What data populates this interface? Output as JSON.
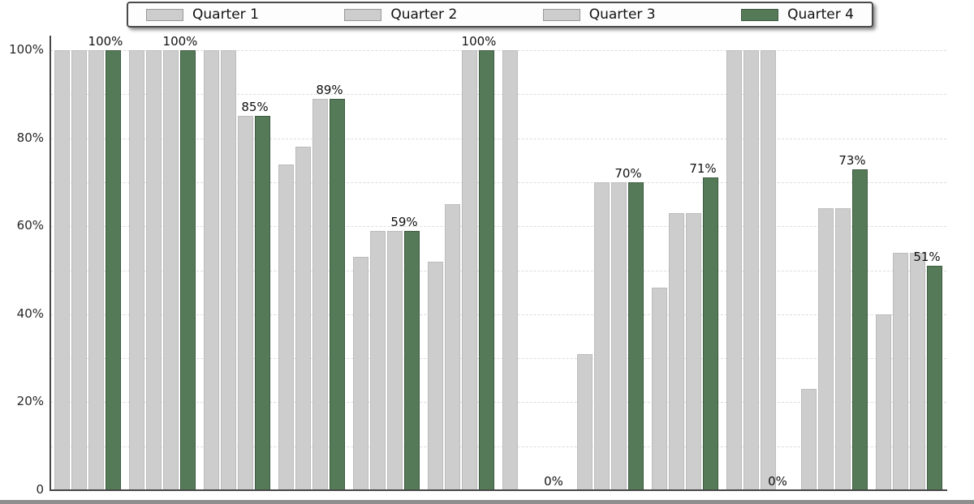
{
  "legend": {
    "items": [
      {
        "label": "Quarter 1",
        "color": "#cdcdcd"
      },
      {
        "label": "Quarter 2",
        "color": "#cdcdcd"
      },
      {
        "label": "Quarter 3",
        "color": "#cdcdcd"
      },
      {
        "label": "Quarter 4",
        "color": "#557a57"
      }
    ]
  },
  "chart_data": {
    "type": "bar",
    "title": "",
    "categories": [
      "",
      "",
      "",
      "",
      "",
      "",
      "",
      "",
      "",
      "",
      "",
      ""
    ],
    "series": [
      {
        "name": "Quarter 1",
        "color": "#cdcdcd",
        "values": [
          100,
          100,
          100,
          74,
          53,
          52,
          100,
          31,
          46,
          100,
          23,
          40
        ]
      },
      {
        "name": "Quarter 2",
        "color": "#cdcdcd",
        "values": [
          100,
          100,
          100,
          78,
          59,
          65,
          0,
          70,
          63,
          100,
          64,
          54
        ]
      },
      {
        "name": "Quarter 3",
        "color": "#cdcdcd",
        "values": [
          100,
          100,
          85,
          89,
          59,
          100,
          0,
          70,
          63,
          100,
          64,
          54
        ]
      },
      {
        "name": "Quarter 4",
        "color": "#557a57",
        "values": [
          100,
          100,
          85,
          89,
          59,
          100,
          0,
          70,
          71,
          0,
          73,
          51
        ]
      }
    ],
    "bar_labels": [
      "100%",
      "100%",
      "85%",
      "89%",
      "59%",
      "100%",
      "0%",
      "70%",
      "71%",
      "0%",
      "73%",
      "51%"
    ],
    "y_ticks": [
      {
        "label": "100%",
        "value": 100
      },
      {
        "label": "80%",
        "value": 80
      },
      {
        "label": "60%",
        "value": 60
      },
      {
        "label": "40%",
        "value": 40
      },
      {
        "label": "20%",
        "value": 20
      },
      {
        "label": "0",
        "value": 0
      }
    ],
    "ylim": [
      0,
      100
    ],
    "grid": "horizontal-dashed",
    "legend_position": "top"
  }
}
